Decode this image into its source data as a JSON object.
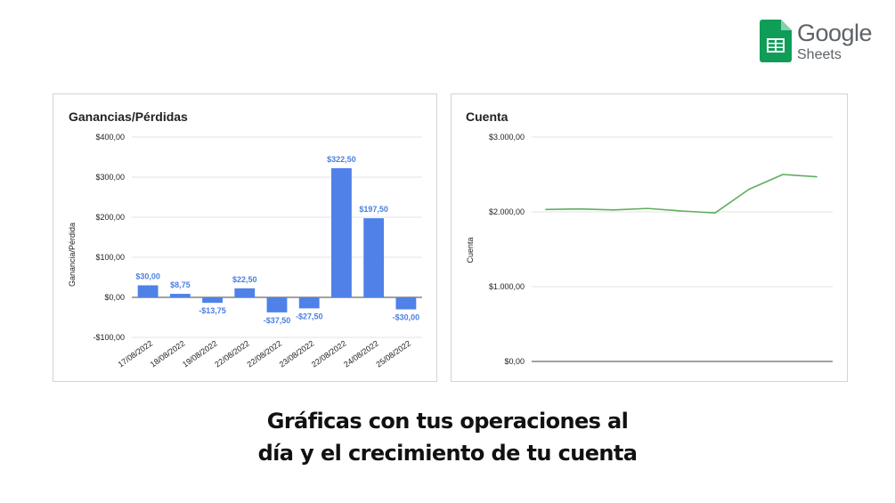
{
  "logo": {
    "brand": "Google",
    "product": "Sheets",
    "colors": {
      "green": "#0f9d58",
      "fold": "#87ceac"
    }
  },
  "caption": {
    "line1": "Gráficas con tus operaciones al",
    "line2": "día y el crecimiento de tu cuenta"
  },
  "chart_data": [
    {
      "type": "bar",
      "title": "Ganancias/Pérdidas",
      "ylabel": "Ganancia/Pérdida",
      "xlabel": "",
      "categories": [
        "17/08/2022",
        "18/08/2022",
        "19/08/2022",
        "22/08/2022",
        "22/08/2022",
        "23/08/2022",
        "22/08/2022",
        "24/08/2022",
        "25/08/2022"
      ],
      "values": [
        30,
        8.75,
        -13.75,
        22.5,
        -37.5,
        -27.5,
        322.5,
        197.5,
        -30
      ],
      "data_labels": [
        "$30,00",
        "$8,75",
        "-$13,75",
        "$22,50",
        "-$37,50",
        "-$27,50",
        "$322,50",
        "$197,50",
        "-$30,00"
      ],
      "ylim": [
        -100,
        400
      ],
      "yticks": [
        400,
        300,
        200,
        100,
        0,
        -100
      ],
      "ytick_labels": [
        "$400,00",
        "$300,00",
        "$200,00",
        "$100,00",
        "$0,00",
        "-$100,00"
      ],
      "color": "#4f81e8",
      "label_color": "#4a7fe0",
      "grid": true,
      "legend": "none"
    },
    {
      "type": "line",
      "title": "Cuenta",
      "ylabel": "Cuenta",
      "xlabel": "",
      "values": [
        2032,
        2040,
        2026,
        2046,
        2012,
        1986,
        2302,
        2500,
        2470
      ],
      "ylim": [
        0,
        3000
      ],
      "yticks": [
        3000,
        2000,
        1000,
        0
      ],
      "ytick_labels": [
        "$3.000,00",
        "$2.000,00",
        "$1.000,00",
        "$0,00"
      ],
      "color": "#5fae5f",
      "grid": true,
      "legend": "none"
    }
  ]
}
